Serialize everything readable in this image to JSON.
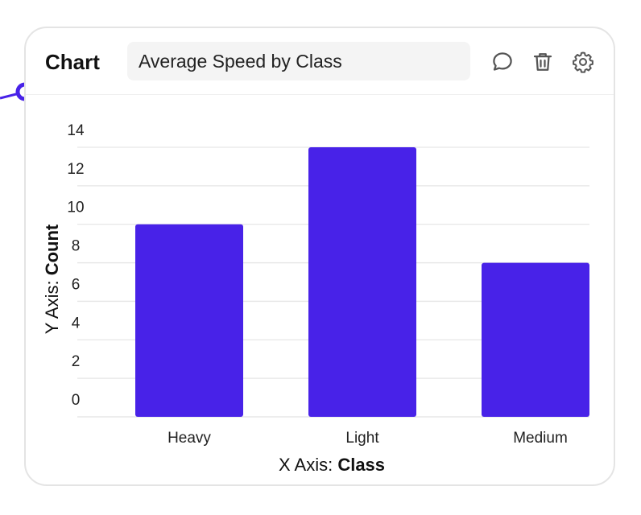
{
  "panel": {
    "title": "Chart",
    "chart_title_value": "Average Speed by Class"
  },
  "icons": {
    "comment": "speech-bubble-icon",
    "delete": "trash-icon",
    "settings": "gear-icon"
  },
  "colors": {
    "bar": "#4822e8",
    "accent": "#4822e8",
    "grid": "#e6e6e6"
  },
  "chart_data": {
    "type": "bar",
    "title": "Average Speed by Class",
    "categories": [
      "Heavy",
      "Light",
      "Medium"
    ],
    "values": [
      10,
      14,
      8
    ],
    "ylim": [
      0,
      14
    ],
    "yticks": [
      0,
      2,
      4,
      6,
      8,
      10,
      12,
      14
    ],
    "xaxis": {
      "prefix": "X Axis: ",
      "label": "Class"
    },
    "yaxis": {
      "prefix": "Y Axis: ",
      "label": "Count"
    },
    "grid": true,
    "legend": "none"
  }
}
